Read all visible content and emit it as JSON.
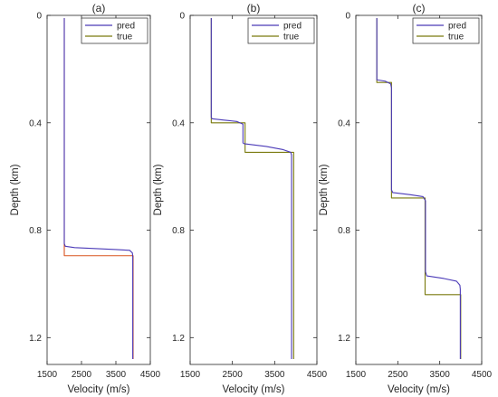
{
  "figure": {
    "xlabel": "Velocity (m/s)",
    "ylabel": "Depth (km)"
  },
  "colors": {
    "pred": "#4b3ab8",
    "true": "#7a7a0e",
    "true_a": "#d9531f"
  },
  "chart_data": [
    {
      "type": "line",
      "title": "(a)",
      "xlabel": "Velocity (m/s)",
      "ylabel": "Depth (km)",
      "xlim": [
        1500,
        4500
      ],
      "ylim": [
        0,
        1.3
      ],
      "y_reversed": true,
      "xticks": [
        "1500",
        "2500",
        "3500",
        "4500"
      ],
      "yticks": [
        "0",
        "0.4",
        "0.8",
        "1.2"
      ],
      "legend": "top-right",
      "series": [
        {
          "name": "pred",
          "x": [
            2000,
            2000,
            2030,
            2300,
            2800,
            3500,
            3900,
            3980,
            3990,
            3990
          ],
          "y": [
            0.01,
            0.85,
            0.86,
            0.865,
            0.868,
            0.872,
            0.875,
            0.885,
            0.9,
            1.28
          ]
        },
        {
          "name": "true",
          "x": [
            2000,
            2000,
            4000,
            4000
          ],
          "y": [
            0.01,
            0.895,
            0.895,
            1.28
          ]
        }
      ]
    },
    {
      "type": "line",
      "title": "(b)",
      "xlabel": "Velocity (m/s)",
      "ylabel": "Depth (km)",
      "xlim": [
        1500,
        4500
      ],
      "ylim": [
        0,
        1.3
      ],
      "y_reversed": true,
      "xticks": [
        "1500",
        "2500",
        "3500",
        "4500"
      ],
      "yticks": [
        "0",
        "0.4",
        "0.8",
        "1.2"
      ],
      "legend": "top-right",
      "series": [
        {
          "name": "pred",
          "x": [
            2000,
            2000,
            2020,
            2300,
            2600,
            2750,
            2750,
            2780,
            3300,
            3700,
            3880,
            3900,
            3900
          ],
          "y": [
            0.01,
            0.38,
            0.385,
            0.39,
            0.395,
            0.405,
            0.475,
            0.478,
            0.488,
            0.5,
            0.51,
            0.52,
            1.28
          ]
        },
        {
          "name": "true",
          "x": [
            2000,
            2000,
            2800,
            2800,
            3950,
            3950
          ],
          "y": [
            0.01,
            0.4,
            0.4,
            0.51,
            0.51,
            1.28
          ]
        }
      ]
    },
    {
      "type": "line",
      "title": "(c)",
      "xlabel": "Velocity (m/s)",
      "ylabel": "Depth (km)",
      "xlim": [
        1500,
        4500
      ],
      "ylim": [
        0,
        1.3
      ],
      "y_reversed": true,
      "xticks": [
        "1500",
        "2500",
        "3500",
        "4500"
      ],
      "yticks": [
        "0",
        "0.4",
        "0.8",
        "1.2"
      ],
      "legend": "top-right",
      "series": [
        {
          "name": "pred",
          "x": [
            2000,
            2000,
            2200,
            2330,
            2350,
            2350,
            2380,
            2800,
            3100,
            3160,
            3160,
            3190,
            3600,
            3900,
            3980,
            3990,
            3990
          ],
          "y": [
            0.01,
            0.24,
            0.245,
            0.255,
            0.27,
            0.65,
            0.66,
            0.668,
            0.675,
            0.69,
            0.955,
            0.97,
            0.98,
            0.99,
            1.005,
            1.02,
            1.28
          ]
        },
        {
          "name": "true",
          "x": [
            2000,
            2000,
            2350,
            2350,
            3150,
            3150,
            4000,
            4000
          ],
          "y": [
            0.01,
            0.25,
            0.25,
            0.68,
            0.68,
            1.04,
            1.04,
            1.28
          ]
        }
      ]
    }
  ]
}
